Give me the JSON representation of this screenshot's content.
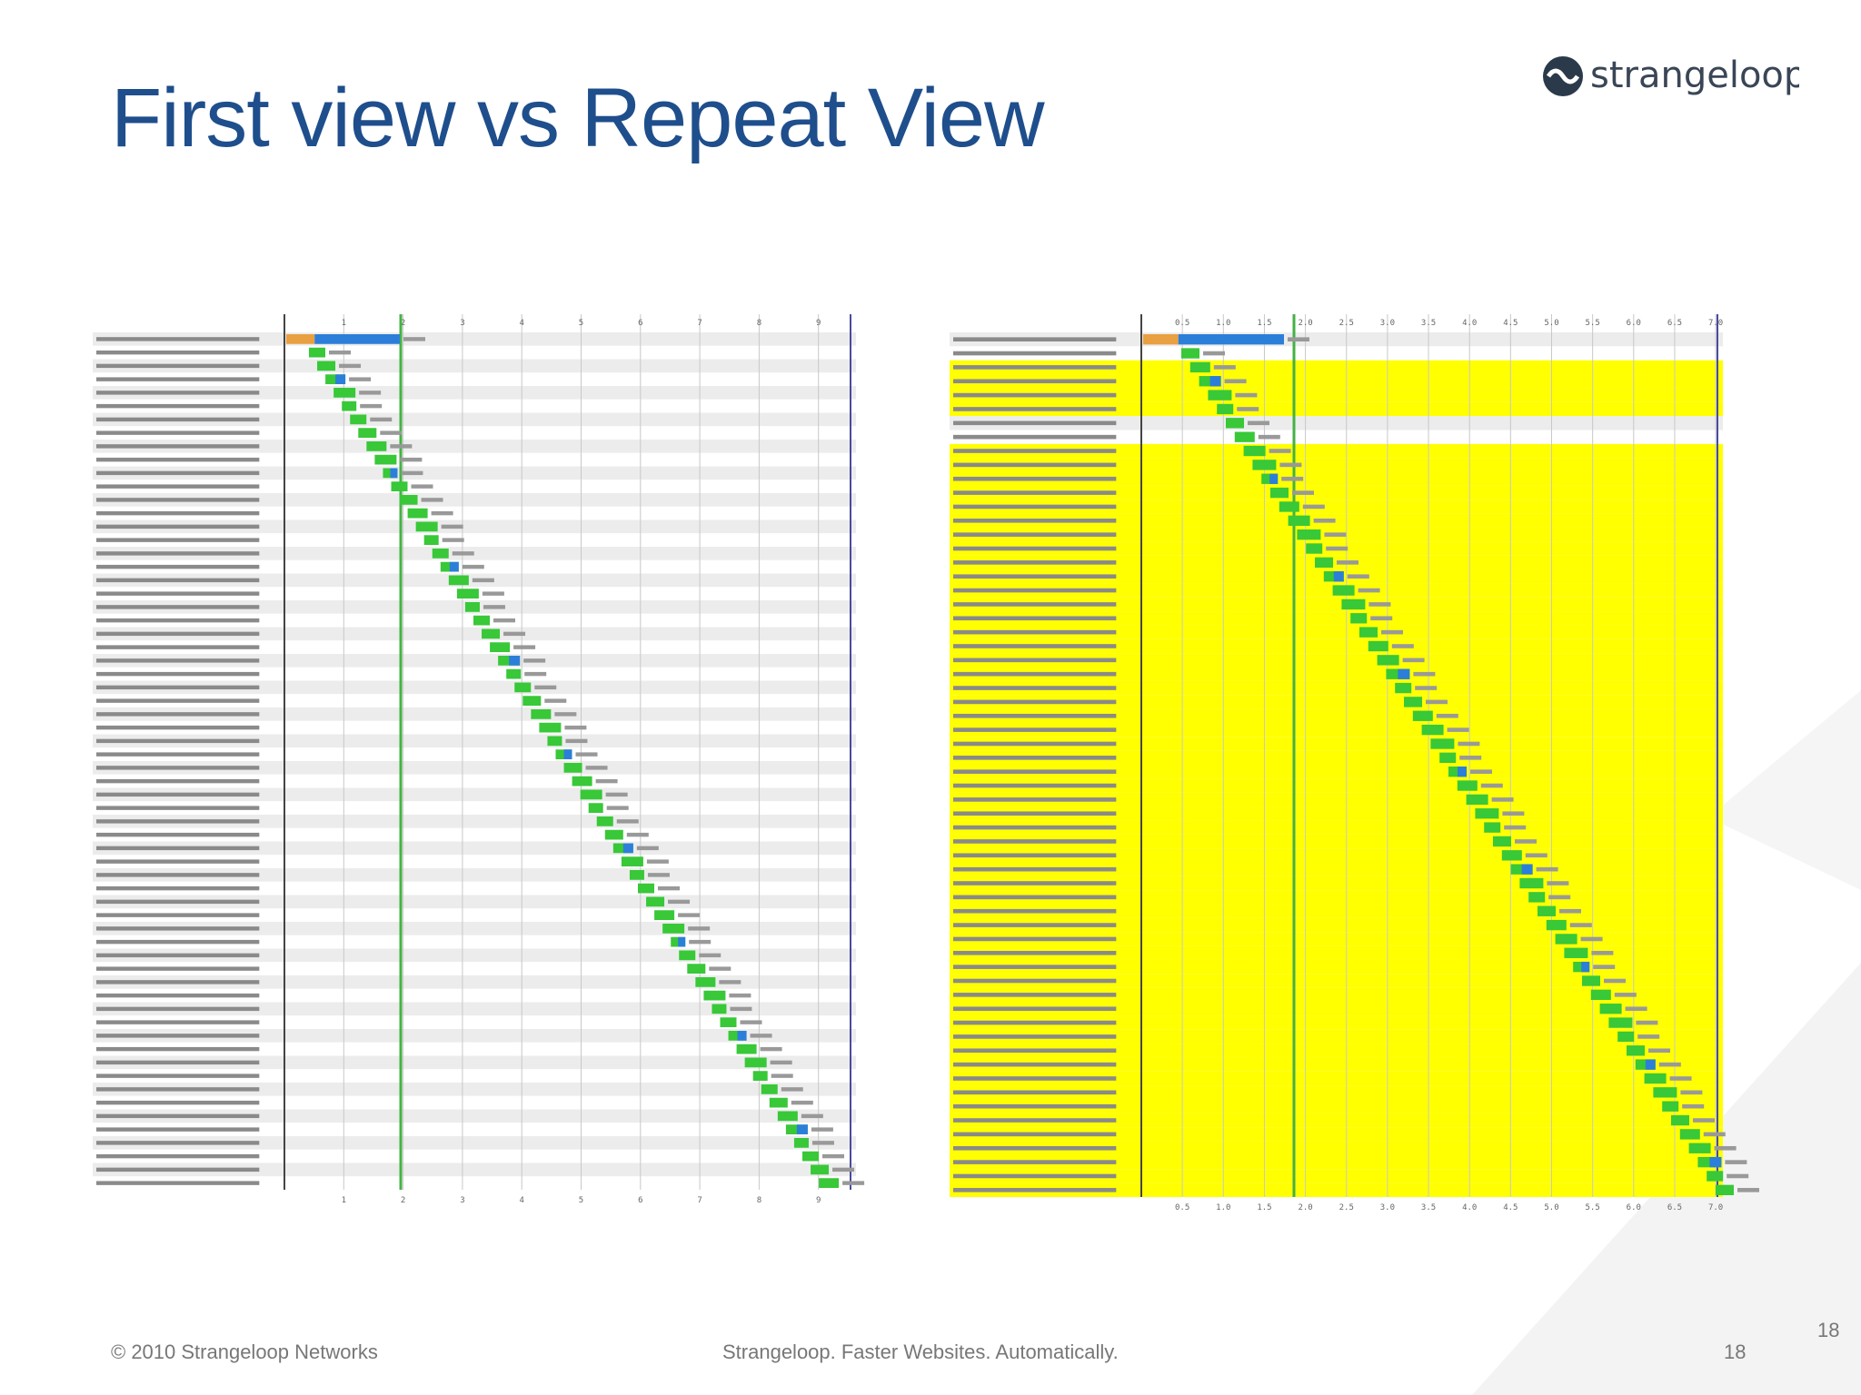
{
  "header": {
    "title": "First view vs Repeat View",
    "logo": "strangeloop"
  },
  "first_view": {
    "ticks": [
      1,
      2,
      3,
      4,
      5,
      6,
      7,
      8,
      9
    ]
  },
  "repeat_view": {
    "ticks": [
      "0.5",
      "1.0",
      "1.5",
      "2.0",
      "2.5",
      "3.0",
      "3.5",
      "4.0",
      "4.5",
      "5.0",
      "5.5",
      "6.0",
      "6.5",
      "7.0"
    ]
  },
  "footer": {
    "copyright": "© 2010 Strangeloop Networks",
    "tagline": "Strangeloop. Faster Websites. Automatically.",
    "page": "18",
    "page_corner": "18"
  }
}
